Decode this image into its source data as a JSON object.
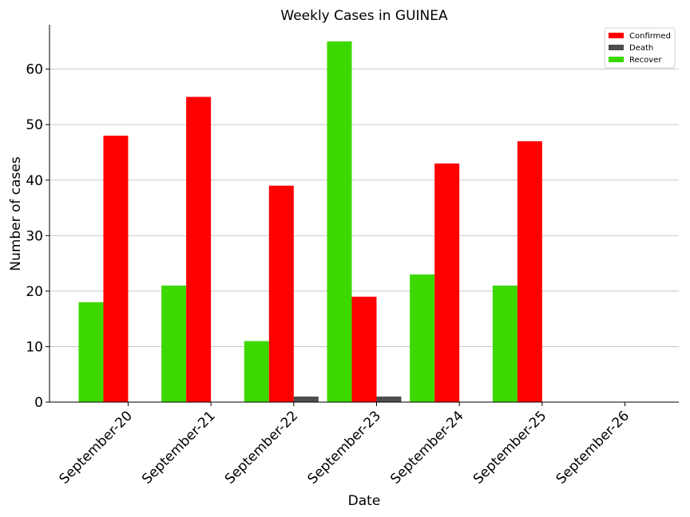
{
  "chart_data": {
    "type": "bar",
    "title": "Weekly Cases in GUINEA",
    "xlabel": "Date",
    "ylabel": "Number of cases",
    "categories": [
      "September-20",
      "September-21",
      "September-22",
      "September-23",
      "September-24",
      "September-25",
      "September-26"
    ],
    "series": [
      {
        "name": "Recover",
        "color": "#3dd800",
        "values": [
          18,
          21,
          11,
          65,
          23,
          21,
          0
        ]
      },
      {
        "name": "Confirmed",
        "color": "#ff0000",
        "values": [
          48,
          55,
          39,
          19,
          43,
          47,
          0
        ]
      },
      {
        "name": "Death",
        "color": "#4d4d4d",
        "values": [
          0,
          0,
          1,
          1,
          0,
          0,
          0
        ]
      }
    ],
    "legend": [
      {
        "name": "Confirmed",
        "color": "#ff0000"
      },
      {
        "name": "Death",
        "color": "#4d4d4d"
      },
      {
        "name": "Recover",
        "color": "#3dd800"
      }
    ],
    "legend_position": "top-right",
    "ylim": [
      0,
      68
    ],
    "yticks": [
      0,
      10,
      20,
      30,
      40,
      50,
      60
    ],
    "grid": "horizontal"
  }
}
